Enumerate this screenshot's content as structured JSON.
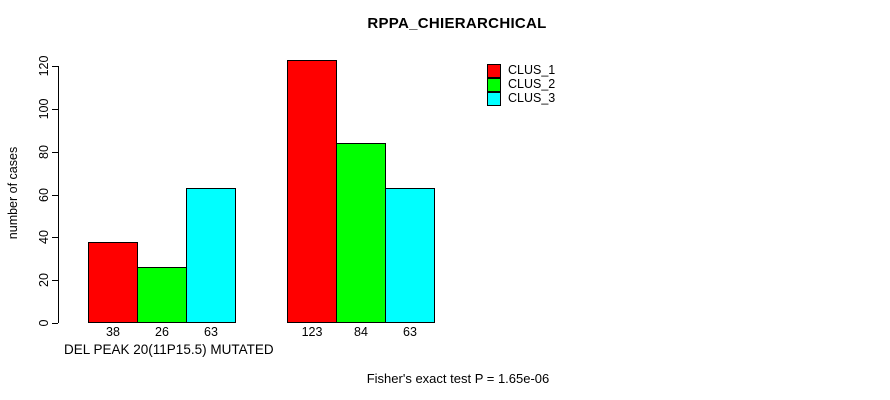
{
  "chart_data": {
    "type": "bar",
    "title": "RPPA_CHIERARCHICAL",
    "xlabel": "DEL PEAK 20(11P15.5) MUTATED",
    "ylabel": "number of cases",
    "categories": [
      "DEL PEAK 20(11P15.5) MUTATED",
      ""
    ],
    "series": [
      {
        "name": "CLUS_1",
        "color": "#ff0000",
        "values": [
          38,
          123
        ]
      },
      {
        "name": "CLUS_2",
        "color": "#00ff00",
        "values": [
          26,
          84
        ]
      },
      {
        "name": "CLUS_3",
        "color": "#00ffff",
        "values": [
          63,
          63
        ]
      }
    ],
    "yticks": [
      0,
      20,
      40,
      60,
      80,
      100,
      120
    ],
    "ylim": [
      0,
      123
    ],
    "grid": false,
    "legend_position": "top-right",
    "bar_value_labels": [
      [
        38,
        26,
        63
      ],
      [
        123,
        84,
        63
      ]
    ],
    "annotation": "Fisher's exact test P = 1.65e-06"
  }
}
